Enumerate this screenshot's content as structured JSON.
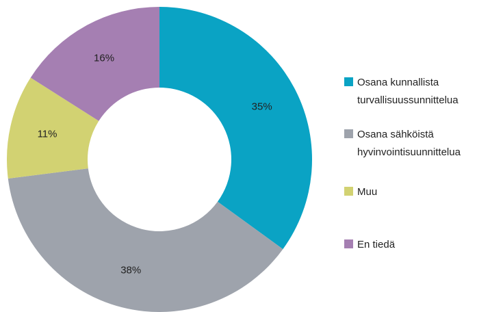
{
  "chart_data": {
    "type": "donut",
    "series": [
      {
        "name": "Osana kunnallista turvallisuussunnittelua",
        "color": "#0aa3c4"
      },
      {
        "name": "Osana sähköistä hyvinvointisuunnittelua",
        "color": "#9ea3ac"
      },
      {
        "name": "Muu",
        "color": "#d2d272"
      },
      {
        "name": "En tiedä",
        "color": "#a57fb2"
      }
    ],
    "values": [
      35,
      38,
      11,
      16
    ],
    "value_labels": [
      "35%",
      "38%",
      "11%",
      "16%"
    ]
  }
}
